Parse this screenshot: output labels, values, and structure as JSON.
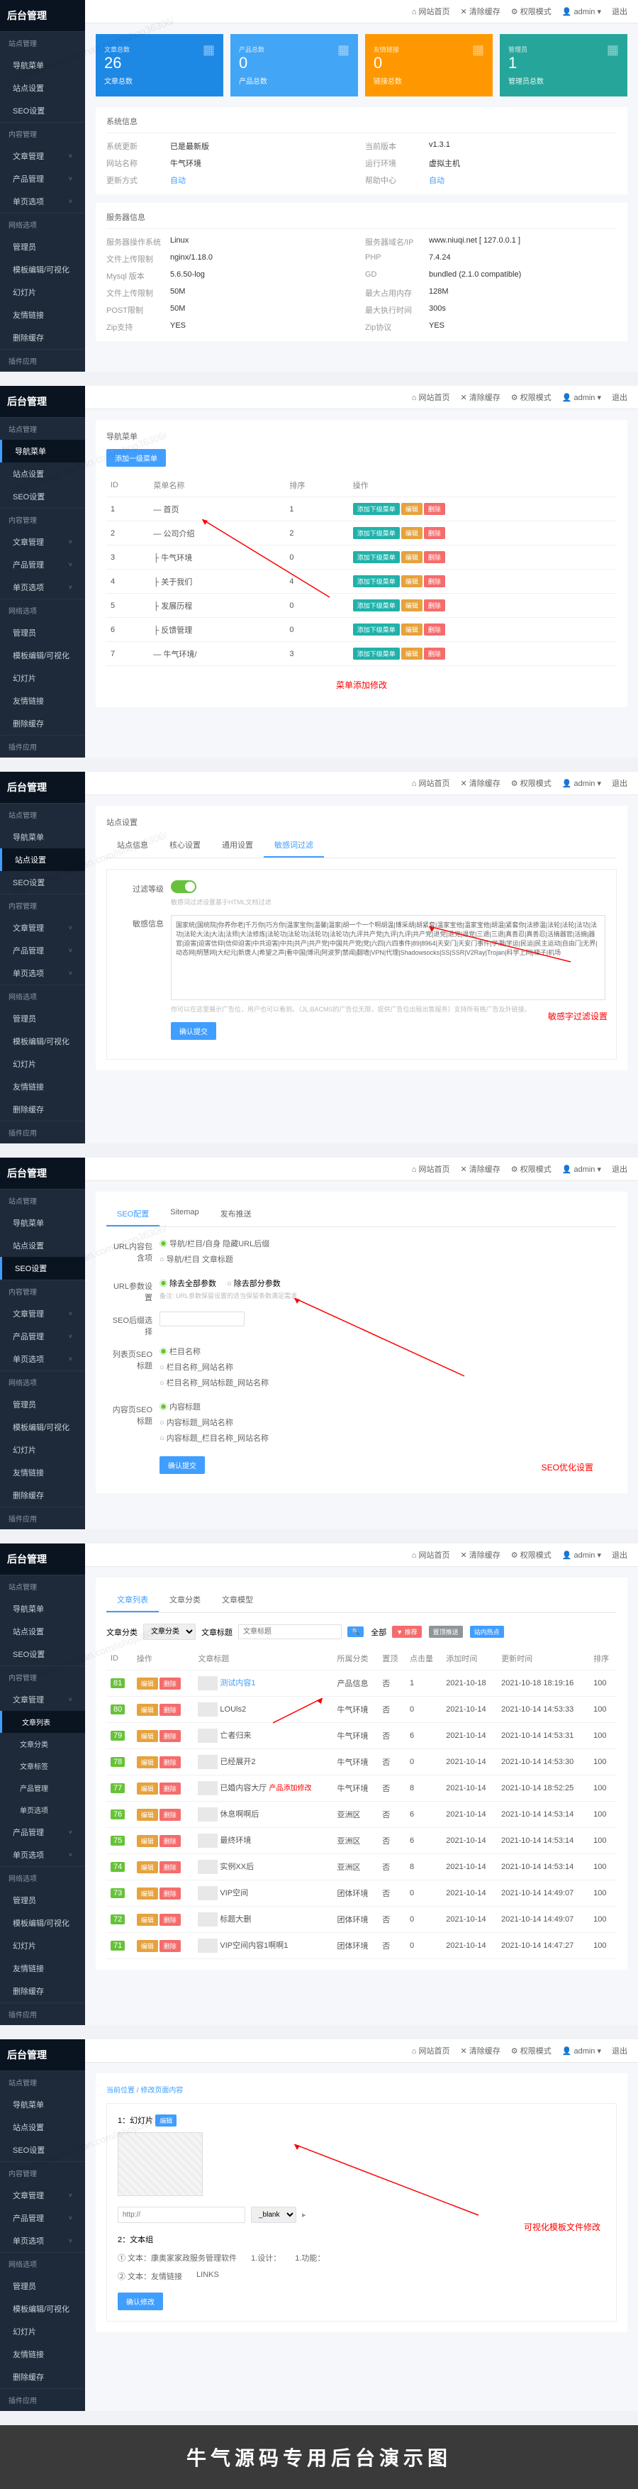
{
  "brand": "后台管理",
  "watermark": "https://www.huzhan.com/ishop36306/",
  "topbar": {
    "home": "⌂ 网站首页",
    "clear": "✕ 清除缓存",
    "perm": "⚙ 权限模式",
    "user": "👤 admin ▾",
    "logout": "退出"
  },
  "sidebar": {
    "groups": [
      {
        "title": "站点管理",
        "items": [
          {
            "label": "导航菜单"
          },
          {
            "label": "站点设置"
          },
          {
            "label": "SEO设置"
          }
        ]
      },
      {
        "title": "内容管理",
        "items": [
          {
            "label": "文章管理",
            "arrow": true
          },
          {
            "label": "产品管理",
            "arrow": true
          },
          {
            "label": "单页选项",
            "arrow": true
          }
        ]
      },
      {
        "title": "网络选项",
        "items": [
          {
            "label": "管理员"
          },
          {
            "label": "模板编辑/可视化"
          },
          {
            "label": "幻灯片"
          },
          {
            "label": "友情链接"
          },
          {
            "label": "删除缓存"
          }
        ]
      },
      {
        "title": "插件应用",
        "items": []
      }
    ],
    "article_sub": [
      {
        "label": "文章列表",
        "active": true
      },
      {
        "label": "文章分类"
      },
      {
        "label": "文章标签"
      },
      {
        "label": "产品管理"
      },
      {
        "label": "单页选项"
      }
    ]
  },
  "p1": {
    "stats": [
      {
        "num": "26",
        "label": "文章总数",
        "color": "#1e88e5",
        "sub": "文章总数"
      },
      {
        "num": "0",
        "label": "产品总数",
        "color": "#42a5f5",
        "sub": "产品总数"
      },
      {
        "num": "0",
        "label": "友情链接",
        "color": "#ff9800",
        "sub": "链接总数"
      },
      {
        "num": "1",
        "label": "管理员",
        "color": "#26a69a",
        "sub": "管理员总数"
      }
    ],
    "sys_title": "系统信息",
    "sys": [
      [
        "系统更新",
        "已是最新版",
        "当前版本",
        "v1.3.1"
      ],
      [
        "网站名称",
        "牛气环境",
        "运行环境",
        "虚拟主机"
      ],
      [
        "更新方式",
        "自动",
        "帮助中心",
        "自动"
      ]
    ],
    "srv_title": "服务器信息",
    "srv": [
      [
        "服务器操作系统",
        "Linux",
        "服务器域名/IP",
        "www.niuqi.net [ 127.0.0.1 ]"
      ],
      [
        "文件上传限制",
        "nginx/1.18.0",
        "PHP",
        "7.4.24"
      ],
      [
        "Mysql 版本",
        "5.6.50-log",
        "GD",
        "bundled (2.1.0 compatible)"
      ],
      [
        "文件上传限制",
        "50M",
        "最大占用内存",
        "128M"
      ],
      [
        "POST限制",
        "50M",
        "最大执行时间",
        "300s"
      ],
      [
        "Zip支持",
        "YES",
        "Zip协议",
        "YES"
      ]
    ]
  },
  "p2": {
    "title": "导航菜单",
    "add_btn": "添加一级菜单",
    "cols": [
      "ID",
      "菜单名称",
      "排序",
      "操作"
    ],
    "rows": [
      {
        "id": "1",
        "name": "— 首页",
        "sort": "1"
      },
      {
        "id": "2",
        "name": "— 公司介绍",
        "sort": "2"
      },
      {
        "id": "3",
        "name": "├ 牛气环境",
        "sort": "0"
      },
      {
        "id": "4",
        "name": "├ 关于我们",
        "sort": "4"
      },
      {
        "id": "5",
        "name": "├ 发展历程",
        "sort": "0"
      },
      {
        "id": "6",
        "name": "├ 反馈管理",
        "sort": "0"
      },
      {
        "id": "7",
        "name": "— 牛气环境/",
        "sort": "3"
      }
    ],
    "actions": {
      "sub": "添加下级菜单",
      "edit": "编辑",
      "del": "删除"
    },
    "annotation": "菜单添加修改"
  },
  "p3": {
    "title": "站点设置",
    "tabs": [
      "站点信息",
      "核心设置",
      "通用设置",
      "敏感词过滤"
    ],
    "filter_label": "过滤等级",
    "filter_hint": "敏感词过滤设置基于HTML文档过滤",
    "keywords_label": "敏感信息",
    "keywords_text": "国家统(国统院|你养你老|千万你|巧方你|温家宝你|温馨|温家|胡一个一个啊胡温|博采胡|胡紧套|温家宝他|温家宝他|胡温|紧套你|法掺温|法轮|法轮|法功|法功|法轮大法|大法|法师|大法修炼|法轮功|法轮功|法轮功|法轮功|九评共产党|九评|九评|共产党|退党|退党|退党|三退|三退|真善忍|真善忍|活摘器官|活摘|器官|迫害|迫害信仰|信仰迫害|中共迫害|中共|共产|共产党|中国共产党|党|六四|六四事件|89|8964|天安门|天安门事件|学潮|学运|民运|民主运动|自由门|无界|动态网|明慧网|大纪元|新唐人|希望之声|看中国|博讯|阿波罗|禁闻|翻墙|VPN|代理|Shadowsocks|SS|SSR|V2Ray|Trojan|科学上网|梯子|机场",
    "keywords_hint": "你可以在这里展示广告位，用户也可以看到。（JL.BACMS的广告位无限，提供广告位出租出售服务）支持所有格广告及外链接。",
    "save_btn": "确认提交",
    "annotation": "敏感字过滤设置"
  },
  "p4": {
    "tabs": [
      "SEO配置",
      "Sitemap",
      "发布推送"
    ],
    "url_label": "URL内容包含项",
    "url_opts": [
      "导航/栏目/自身 隐藏URL后缀",
      "导航/栏目 文章标题"
    ],
    "param_label": "URL参数设置",
    "param_opts": [
      "除去全部参数",
      "除去部分参数"
    ],
    "param_hint": "备注: URL参数保留设置的适当保留条数满足需求",
    "suffix_label": "SEO后缀选择",
    "list_label": "列表页SEO标题",
    "list_opts": [
      "栏目名称",
      "栏目名称_网站名称",
      "栏目名称_网站标题_网站名称"
    ],
    "content_label": "内容页SEO标题",
    "content_opts": [
      "内容标题",
      "内容标题_网站名称",
      "内容标题_栏目名称_网站名称"
    ],
    "save_btn": "确认提交",
    "annotation": "SEO优化设置"
  },
  "p5": {
    "tabs": [
      "文章列表",
      "文章分类",
      "文章模型"
    ],
    "filter": {
      "cat_label": "文章分类",
      "cat_ph": "文章分类",
      "title_label": "文章标题",
      "title_ph": "文章标题",
      "search": "🔍",
      "all": "全部",
      "rec": "▼ 推荐",
      "top": "置顶推送",
      "hot": "站内热点"
    },
    "cols": [
      "ID",
      "操作",
      "文章标题",
      "所属分类",
      "置顶",
      "点击量",
      "添加时间",
      "更新时间",
      "排序"
    ],
    "rows": [
      {
        "id": "81",
        "title": "测试内容1",
        "cat": "产品信息",
        "top": "否",
        "hits": "1",
        "add": "2021-10-18",
        "upd": "2021-10-18 18:19:16",
        "sort": "100",
        "link": true
      },
      {
        "id": "80",
        "title": "LOUls2",
        "cat": "牛气环境",
        "top": "否",
        "hits": "0",
        "add": "2021-10-14",
        "upd": "2021-10-14 14:53:33",
        "sort": "100"
      },
      {
        "id": "79",
        "title": "亡者归来",
        "cat": "牛气环境",
        "top": "否",
        "hits": "6",
        "add": "2021-10-14",
        "upd": "2021-10-14 14:53:31",
        "sort": "100"
      },
      {
        "id": "78",
        "title": "已经展开2",
        "cat": "牛气环境",
        "top": "否",
        "hits": "0",
        "add": "2021-10-14",
        "upd": "2021-10-14 14:53:30",
        "sort": "100"
      },
      {
        "id": "77",
        "title": "已婚内容大厅",
        "cat": "牛气环境",
        "top": "否",
        "hits": "8",
        "add": "2021-10-14",
        "upd": "2021-10-14 18:52:25",
        "sort": "100",
        "ann": true
      },
      {
        "id": "76",
        "title": "休息啊啊后",
        "cat": "亚洲区",
        "top": "否",
        "hits": "6",
        "add": "2021-10-14",
        "upd": "2021-10-14 14:53:14",
        "sort": "100"
      },
      {
        "id": "75",
        "title": "最终环境",
        "cat": "亚洲区",
        "top": "否",
        "hits": "6",
        "add": "2021-10-14",
        "upd": "2021-10-14 14:53:14",
        "sort": "100"
      },
      {
        "id": "74",
        "title": "实例XX后",
        "cat": "亚洲区",
        "top": "否",
        "hits": "8",
        "add": "2021-10-14",
        "upd": "2021-10-14 14:53:14",
        "sort": "100"
      },
      {
        "id": "73",
        "title": "VIP空间",
        "cat": "团体环境",
        "top": "否",
        "hits": "0",
        "add": "2021-10-14",
        "upd": "2021-10-14 14:49:07",
        "sort": "100"
      },
      {
        "id": "72",
        "title": "标题大删",
        "cat": "团体环境",
        "top": "否",
        "hits": "0",
        "add": "2021-10-14",
        "upd": "2021-10-14 14:49:07",
        "sort": "100"
      },
      {
        "id": "71",
        "title": "VIP空间内容1啊啊1",
        "cat": "团体环境",
        "top": "否",
        "hits": "0",
        "add": "2021-10-14",
        "upd": "2021-10-14 14:47:27",
        "sort": "100"
      }
    ],
    "actions": {
      "edit": "编辑",
      "del": "删除"
    },
    "annotation": "产品添加修改"
  },
  "p6": {
    "breadcrumb": "当前位置 / 修改页面内容",
    "sec1": "1：幻灯片",
    "edit_btn": "编辑",
    "url_ph": "http://",
    "target": "_blank",
    "sec2": "2：文本组",
    "text1": "① 文本：康奥家家政服务管理软件",
    "text2": "1.设计：",
    "text3": "1.功能：",
    "text_row": "② 文本：友情链接",
    "links": "LINKS",
    "save_btn": "确认修改",
    "annotation": "可视化模板文件修改"
  },
  "footer": "牛气源码专用后台演示图"
}
